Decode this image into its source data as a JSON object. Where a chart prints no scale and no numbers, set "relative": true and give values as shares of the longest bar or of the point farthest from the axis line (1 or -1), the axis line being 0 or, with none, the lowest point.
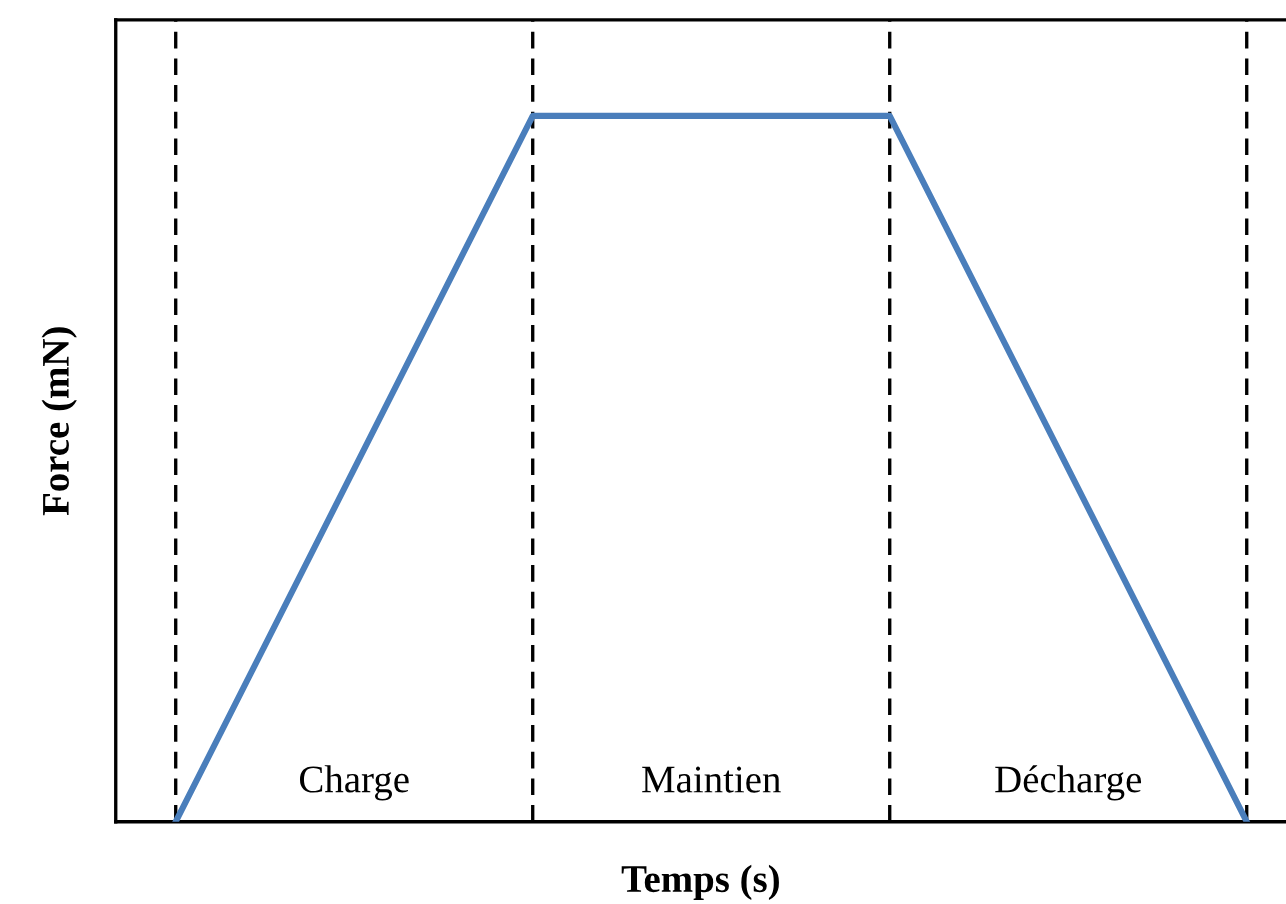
{
  "chart_data": {
    "type": "line",
    "relative": true,
    "xlabel": "Temps (s)",
    "ylabel": "Force (mN)",
    "categories": [
      null,
      null,
      null,
      null
    ],
    "series": [
      {
        "color": "#4a7ebb",
        "values": [
          0,
          1,
          1,
          0
        ]
      }
    ],
    "annotations": [
      "Charge",
      "Maintien",
      "Décharge"
    ],
    "grid": "x",
    "legend": false,
    "marker": "none",
    "line_style": "solid"
  }
}
